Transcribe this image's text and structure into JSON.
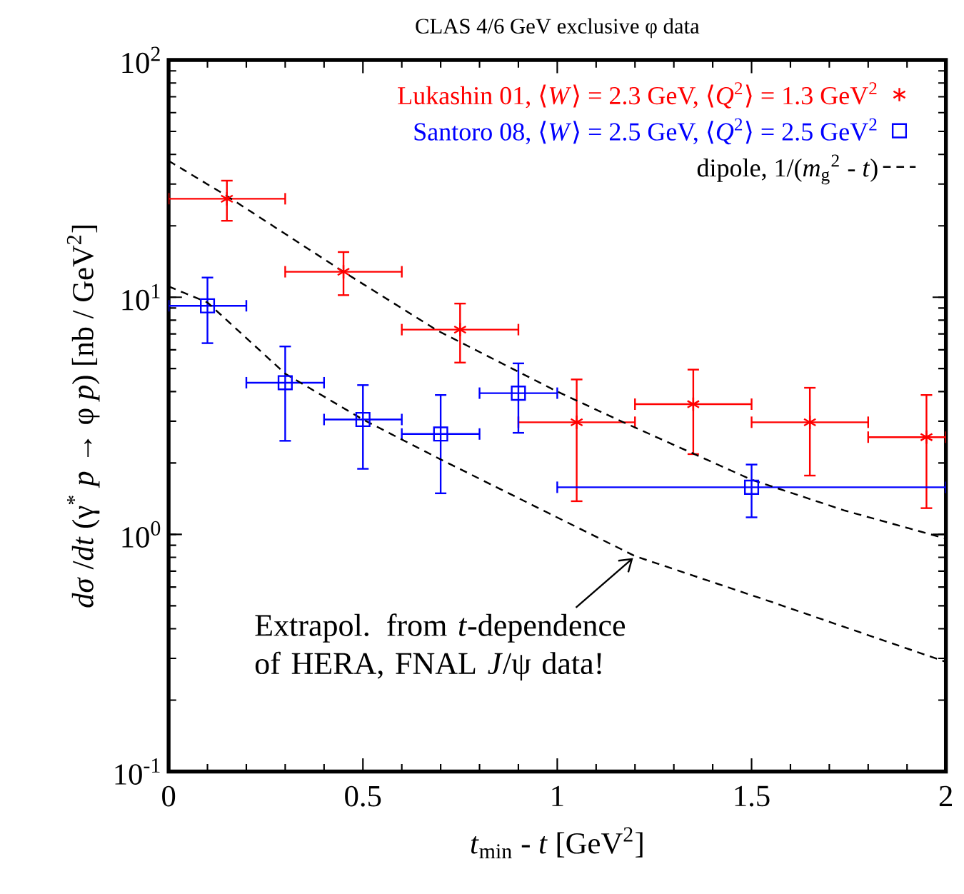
{
  "chart_data": {
    "type": "scatter",
    "title": "CLAS 4/6 GeV exclusive φ data",
    "xlabel": "*t*$_{min}$ - *t*   [GeV$^{2}$]",
    "ylabel": "*dσ* /*dt* (γ$^{*}$ *p* → φ *p*)   [nb / GeV$^{2}$]",
    "xlim": [
      0,
      2
    ],
    "ylim": [
      0.1,
      100
    ],
    "log": "y",
    "xticks": [
      0,
      0.5,
      1,
      1.5,
      2
    ],
    "yticks": [
      {
        "value": 0.1,
        "label": "10$^{-1}$"
      },
      {
        "value": 1,
        "label": "10$^{0}$"
      },
      {
        "value": 10,
        "label": "10$^{1}$"
      },
      {
        "value": 100,
        "label": "10$^{2}$"
      }
    ],
    "legend": "top right",
    "grid": false,
    "series": [
      {
        "name": "Lukashin 01, ⟨*W*⟩ = 2.3 GeV, ⟨*Q*$^{2}$⟩ = 1.3 GeV$^{2}$",
        "color": "#ff0000",
        "type": "scatter",
        "marker": "cross",
        "x": [
          0.15,
          0.45,
          0.75,
          1.05,
          1.35,
          1.65,
          1.95
        ],
        "values": [
          26,
          12.8,
          7.3,
          2.97,
          3.54,
          2.97,
          2.57
        ],
        "errors": [
          [
            21,
            31
          ],
          [
            10.2,
            15.5
          ],
          [
            5.3,
            9.4
          ],
          [
            1.38,
            4.5
          ],
          [
            2.18,
            4.95
          ],
          [
            1.77,
            4.15
          ],
          [
            1.29,
            3.87
          ]
        ],
        "xerrors": [
          [
            0,
            0.3
          ],
          [
            0.3,
            0.6
          ],
          [
            0.6,
            0.9
          ],
          [
            0.9,
            1.2
          ],
          [
            1.2,
            1.5
          ],
          [
            1.5,
            1.8
          ],
          [
            1.8,
            2.0
          ]
        ]
      },
      {
        "name": "Santoro 08, ⟨*W*⟩ = 2.5 GeV, ⟨*Q*$^{2}$⟩ = 2.5 GeV$^{2}$",
        "color": "#0000ff",
        "type": "scatter",
        "marker": "square",
        "x": [
          0.1,
          0.3,
          0.5,
          0.7,
          0.9,
          1.5
        ],
        "values": [
          9.2,
          4.36,
          3.05,
          2.65,
          3.94,
          1.58
        ],
        "errors": [
          [
            6.4,
            12.1
          ],
          [
            2.48,
            6.2
          ],
          [
            1.89,
            4.26
          ],
          [
            1.49,
            3.87
          ],
          [
            2.68,
            5.26
          ],
          [
            1.18,
            1.97
          ]
        ],
        "xerrors": [
          [
            0,
            0.2
          ],
          [
            0.2,
            0.4
          ],
          [
            0.4,
            0.6
          ],
          [
            0.6,
            0.8
          ],
          [
            0.8,
            1.0
          ],
          [
            1.0,
            2.0
          ]
        ]
      },
      {
        "name": "dipole, 1/(*m*$_{g}$$^{2}$ - *t*)",
        "color": "#000000",
        "type": "line",
        "marker": "none",
        "line_style": "dashed",
        "x": [
          0,
          0.15,
          0.45,
          0.69,
          1.0,
          1.17,
          1.5,
          1.74,
          2.0
        ],
        "values": [
          37.6,
          26.7,
          12.8,
          7.26,
          4.0,
          2.97,
          1.7,
          1.26,
          0.96
        ]
      },
      {
        "color": "#000000",
        "type": "line",
        "marker": "none",
        "line_style": "dashed",
        "x": [
          0,
          0.1,
          0.3,
          0.5,
          0.7,
          1.2,
          1.55,
          2.0
        ],
        "values": [
          11.1,
          9.5,
          4.76,
          3.05,
          2.07,
          0.81,
          0.52,
          0.29
        ]
      }
    ],
    "annotations": [
      {
        "text": "Extrapol. from *t*-dependence of HERA, FNAL *J*/ψ data!",
        "x": 1.2,
        "y": 0.81
      }
    ]
  }
}
